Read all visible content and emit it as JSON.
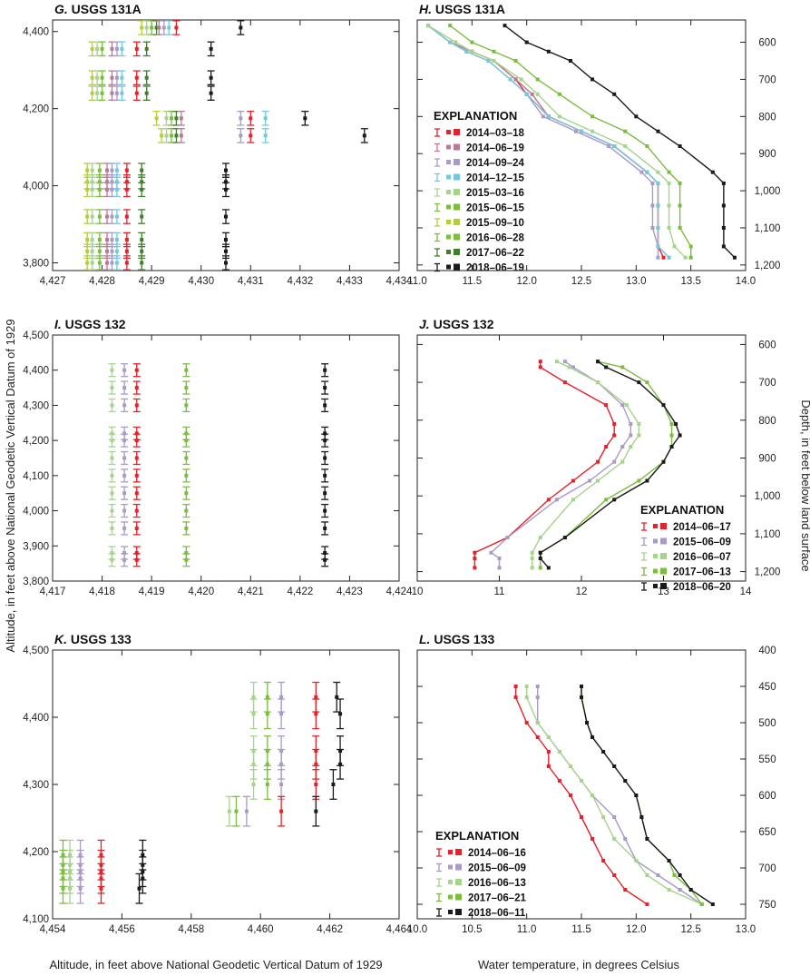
{
  "figure": {
    "left_axis_title": "Altitude, in feet above National Geodetic Vertical Datum of 1929",
    "bottom_left_title": "Altitude, in feet above National Geodetic Vertical Datum of 1929",
    "right_axis_title": "Depth, in feet below land surface",
    "bottom_right_title": "Water temperature, in degrees Celsius"
  },
  "colors": {
    "red": "#e4222b",
    "mauve": "#b97a94",
    "lavender": "#a99ac7",
    "cyan": "#74c8dd",
    "lightgreen": "#a6d48c",
    "green": "#7cbd3f",
    "lime": "#b3cf3a",
    "darkgreen": "#3f7e2c",
    "black": "#1a1a1a"
  },
  "chart_data": [
    {
      "id": "G",
      "type": "scatter",
      "letter": "G.",
      "title": " USGS 131A",
      "xlim": [
        4427,
        4434
      ],
      "ylim": [
        3780,
        4430
      ],
      "xticks": [
        4427,
        4428,
        4429,
        4430,
        4431,
        4432,
        4433,
        4434
      ],
      "xtick_labels": [
        "4,427",
        "4,428",
        "4,429",
        "4,430",
        "4,431",
        "4,432",
        "4,433",
        "4,434"
      ],
      "yticks": [
        3800,
        4000,
        4200,
        4400
      ],
      "ytick_labels": [
        "3,800",
        "4,000",
        "4,200",
        "4,400"
      ],
      "ytick_side": "left",
      "series": [
        {
          "color": "lime",
          "x": [
            4428.8,
            4427.8,
            4427.8,
            4427.8,
            4429.1,
            4429.2,
            4427.7,
            4427.7,
            4427.7,
            4427.7,
            4427.7,
            4427.7,
            4427.7
          ]
        },
        {
          "color": "lightgreen",
          "x": [
            4428.9,
            4427.9,
            4427.9,
            4427.9,
            4429.3,
            4429.3,
            4427.8,
            4427.8,
            4427.8,
            4427.8,
            4427.8,
            4427.8,
            4427.8
          ]
        },
        {
          "color": "green",
          "x": [
            4429.0,
            4428.0,
            4428.0,
            4428.0,
            4429.4,
            4429.4,
            4427.95,
            4427.95,
            4427.95,
            4427.95,
            4427.95,
            4427.95,
            4427.95
          ]
        },
        {
          "color": "darkgreen",
          "x": [
            4429.1,
            4428.9,
            4428.9,
            4428.9,
            4429.5,
            4429.5,
            4428.8,
            4428.8,
            4428.8,
            4428.8,
            4428.8,
            4428.8,
            4428.8
          ]
        },
        {
          "color": "mauve",
          "x": [
            4429.15,
            4428.2,
            4428.2,
            4428.2,
            4429.6,
            4429.6,
            4428.1,
            4428.1,
            4428.1,
            4428.1,
            4428.1,
            4428.1,
            4428.1
          ]
        },
        {
          "color": "lavender",
          "x": [
            4429.25,
            4428.3,
            4428.3,
            4428.3,
            4430.8,
            4430.8,
            4428.2,
            4428.2,
            4428.2,
            4428.2,
            4428.2,
            4428.2,
            4428.2
          ]
        },
        {
          "color": "cyan",
          "x": [
            4429.35,
            4428.4,
            4428.4,
            4428.4,
            4431.3,
            4431.3,
            4428.3,
            4428.3,
            4428.3,
            4428.3,
            4428.3,
            4428.3,
            4428.3
          ]
        },
        {
          "color": "red",
          "x": [
            4429.5,
            4428.7,
            4428.7,
            4428.7,
            4431.0,
            4431.0,
            4428.5,
            4428.5,
            4428.5,
            4428.5,
            4428.5,
            4428.5,
            4428.5
          ]
        },
        {
          "color": "black",
          "x": [
            4430.8,
            4430.2,
            4430.2,
            4430.2,
            4432.1,
            4433.3,
            4430.5,
            4430.5,
            4430.5,
            4430.5,
            4430.5,
            4430.5,
            4430.5
          ]
        }
      ],
      "y": [
        4410,
        4355,
        4280,
        4240,
        4175,
        4130,
        4040,
        4010,
        3990,
        3920,
        3860,
        3830,
        3800
      ],
      "yerr": 18
    },
    {
      "id": "H",
      "type": "line",
      "letter": "H.",
      "title": " USGS 131A",
      "xlim": [
        11.0,
        14.0
      ],
      "ylim": [
        540,
        1215
      ],
      "xticks": [
        11.0,
        11.5,
        12.0,
        12.5,
        13.0,
        13.5,
        14.0
      ],
      "xtick_labels": [
        "11.0",
        "11.5",
        "12.0",
        "12.5",
        "13.0",
        "13.5",
        "14.0"
      ],
      "yticks": [
        600,
        700,
        800,
        900,
        1000,
        1100,
        1200
      ],
      "ytick_labels": [
        "600",
        "700",
        "800",
        "900",
        "1,000",
        "1,100",
        "1,200"
      ],
      "ytick_side": "right",
      "y_inverted": true,
      "legend": {
        "title": "EXPLANATION",
        "placement": "center-left",
        "entries": [
          {
            "label": "2014–03–18",
            "color": "red"
          },
          {
            "label": "2014–06–19",
            "color": "mauve"
          },
          {
            "label": "2014–09–24",
            "color": "lavender"
          },
          {
            "label": "2014–12–15",
            "color": "cyan"
          },
          {
            "label": "2015–03–16",
            "color": "lightgreen"
          },
          {
            "label": "2015–06–15",
            "color": "green"
          },
          {
            "label": "2015–09–10",
            "color": "lime"
          },
          {
            "label": "2016–06–28",
            "color": "green"
          },
          {
            "label": "2017–06–22",
            "color": "darkgreen"
          },
          {
            "label": "2018–06–19",
            "color": "black"
          }
        ]
      },
      "depth": [
        555,
        600,
        625,
        650,
        700,
        740,
        800,
        840,
        880,
        950,
        980,
        1040,
        1100,
        1150,
        1180
      ],
      "series": [
        {
          "color": "red",
          "values": [
            11.1,
            11.3,
            11.5,
            11.7,
            11.9,
            12.0,
            12.2,
            12.5,
            12.8,
            13.1,
            13.2,
            13.2,
            13.2,
            13.2,
            13.25
          ]
        },
        {
          "color": "mauve",
          "values": [
            11.1,
            11.3,
            11.5,
            11.7,
            11.9,
            12.05,
            12.2,
            12.5,
            12.8,
            13.1,
            13.2,
            13.2,
            13.2,
            13.2,
            13.3
          ]
        },
        {
          "color": "lavender",
          "values": [
            11.1,
            11.3,
            11.45,
            11.65,
            11.85,
            12.0,
            12.15,
            12.45,
            12.75,
            13.05,
            13.15,
            13.15,
            13.15,
            13.2,
            13.2
          ]
        },
        {
          "color": "cyan",
          "values": [
            11.1,
            11.3,
            11.45,
            11.65,
            11.85,
            12.0,
            12.2,
            12.5,
            12.8,
            13.1,
            13.2,
            13.2,
            13.2,
            13.2,
            13.3
          ]
        },
        {
          "color": "lightgreen",
          "values": [
            11.1,
            11.35,
            11.5,
            11.7,
            11.95,
            12.1,
            12.3,
            12.6,
            12.9,
            13.2,
            13.3,
            13.3,
            13.3,
            13.35,
            13.45
          ]
        },
        {
          "color": "green",
          "values": [
            11.3,
            11.5,
            11.7,
            11.9,
            12.1,
            12.3,
            12.6,
            12.9,
            13.1,
            13.3,
            13.4,
            13.4,
            13.4,
            13.5,
            13.5
          ]
        },
        {
          "color": "black",
          "values": [
            11.8,
            12.0,
            12.2,
            12.4,
            12.6,
            12.8,
            13.0,
            13.2,
            13.4,
            13.7,
            13.8,
            13.8,
            13.8,
            13.8,
            13.9
          ]
        }
      ]
    },
    {
      "id": "I",
      "type": "scatter",
      "letter": "I.",
      "title": " USGS 132",
      "xlim": [
        4417,
        4424
      ],
      "ylim": [
        3800,
        4500
      ],
      "xticks": [
        4417,
        4418,
        4419,
        4420,
        4421,
        4422,
        4423,
        4424
      ],
      "xtick_labels": [
        "4,417",
        "4,418",
        "4,419",
        "4,420",
        "4,421",
        "4,422",
        "4,423",
        "4,424"
      ],
      "yticks": [
        3800,
        3900,
        4000,
        4100,
        4200,
        4300,
        4400,
        4500
      ],
      "ytick_labels": [
        "3,800",
        "3,900",
        "4,000",
        "4,100",
        "4,200",
        "4,300",
        "4,400",
        "4,500"
      ],
      "ytick_side": "left",
      "series": [
        {
          "color": "lightgreen",
          "x": 4418.2
        },
        {
          "color": "lavender",
          "x": 4418.45
        },
        {
          "color": "red",
          "x": 4418.7
        },
        {
          "color": "green",
          "x": 4419.7
        },
        {
          "color": "black",
          "x": 4422.5
        }
      ],
      "y": [
        4400,
        4350,
        4300,
        4220,
        4200,
        4150,
        4100,
        4050,
        4000,
        3950,
        3880,
        3860
      ],
      "yerr": 18
    },
    {
      "id": "J",
      "type": "line",
      "letter": "J.",
      "title": " USGS 132",
      "xlim": [
        10,
        14
      ],
      "ylim": [
        575,
        1225
      ],
      "xticks": [
        10,
        11,
        12,
        13,
        14
      ],
      "xtick_labels": [
        "10",
        "11",
        "12",
        "13",
        "14"
      ],
      "yticks": [
        600,
        700,
        800,
        900,
        1000,
        1100,
        1200
      ],
      "ytick_labels": [
        "600",
        "700",
        "800",
        "900",
        "1,000",
        "1,100",
        "1,200"
      ],
      "ytick_side": "right",
      "y_inverted": true,
      "legend": {
        "title": "EXPLANATION",
        "placement": "lower-right",
        "entries": [
          {
            "label": "2014–06–17",
            "color": "red"
          },
          {
            "label": "2015–06–09",
            "color": "lavender"
          },
          {
            "label": "2016–06–07",
            "color": "lightgreen"
          },
          {
            "label": "2017–06–13",
            "color": "green"
          },
          {
            "label": "2018–06–20",
            "color": "black"
          }
        ]
      },
      "depth": [
        645,
        660,
        700,
        760,
        810,
        840,
        870,
        910,
        960,
        1010,
        1110,
        1150,
        1165,
        1190
      ],
      "series": [
        {
          "color": "red",
          "values": [
            11.5,
            11.5,
            11.8,
            12.3,
            12.4,
            12.4,
            12.3,
            12.2,
            11.9,
            11.6,
            11.1,
            10.7,
            10.7,
            10.7
          ]
        },
        {
          "color": "lavender",
          "values": [
            11.8,
            11.9,
            12.2,
            12.5,
            12.6,
            12.6,
            12.5,
            12.4,
            12.1,
            11.7,
            11.1,
            10.9,
            11.0,
            11.0
          ]
        },
        {
          "color": "lightgreen",
          "values": [
            11.7,
            11.85,
            12.2,
            12.55,
            12.7,
            12.7,
            12.6,
            12.5,
            12.2,
            11.9,
            11.5,
            11.4,
            11.4,
            11.4
          ]
        },
        {
          "color": "green",
          "values": [
            12.2,
            12.5,
            12.8,
            13.0,
            13.1,
            13.1,
            13.1,
            13.0,
            12.7,
            12.3,
            11.8,
            11.5,
            11.5,
            11.5
          ]
        },
        {
          "color": "black",
          "values": [
            12.2,
            12.3,
            12.7,
            13.0,
            13.15,
            13.2,
            13.1,
            13.0,
            12.8,
            12.4,
            11.8,
            11.5,
            11.5,
            11.6
          ]
        }
      ]
    },
    {
      "id": "K",
      "type": "scatter",
      "letter": "K.",
      "title": " USGS 133",
      "xlim": [
        4454,
        4464
      ],
      "ylim": [
        4100,
        4500
      ],
      "xticks": [
        4454,
        4456,
        4458,
        4460,
        4462,
        4464
      ],
      "xtick_labels": [
        "4,454",
        "4,456",
        "4,458",
        "4,460",
        "4,462",
        "4,464"
      ],
      "yticks": [
        4100,
        4200,
        4300,
        4400,
        4500
      ],
      "ytick_labels": [
        "4,100",
        "4,200",
        "4,300",
        "4,400",
        "4,500"
      ],
      "ytick_side": "left",
      "series": [
        {
          "color": "lightgreen",
          "x": [
            4459.8,
            4459.8,
            4459.8,
            4459.8,
            4459.8,
            4459.1,
            4454.5,
            4454.5,
            4454.5,
            4454.5,
            4454.5
          ]
        },
        {
          "color": "green",
          "x": [
            4460.2,
            4460.2,
            4460.2,
            4460.2,
            4460.2,
            4459.3,
            4454.3,
            4454.3,
            4454.3,
            4454.3,
            4454.3
          ]
        },
        {
          "color": "lavender",
          "x": [
            4460.6,
            4460.6,
            4460.6,
            4460.6,
            4460.6,
            4459.6,
            4454.8,
            4454.8,
            4454.8,
            4454.8,
            4454.8
          ]
        },
        {
          "color": "red",
          "x": [
            4461.6,
            4461.6,
            4461.6,
            4461.6,
            4461.6,
            4460.6,
            4455.4,
            4455.4,
            4455.4,
            4455.4,
            4455.4
          ]
        },
        {
          "color": "black",
          "x": [
            4462.2,
            4462.3,
            4462.3,
            4462.3,
            4462.1,
            4461.6,
            4456.6,
            4456.6,
            4456.6,
            4456.6,
            4456.5
          ]
        }
      ],
      "y": [
        4430,
        4405,
        4350,
        4330,
        4300,
        4260,
        4195,
        4180,
        4170,
        4160,
        4145
      ],
      "yerr": 22
    },
    {
      "id": "L",
      "type": "line",
      "letter": "L.",
      "title": " USGS 133",
      "xlim": [
        10.0,
        13.0
      ],
      "ylim": [
        400,
        770
      ],
      "xticks": [
        10.0,
        10.5,
        11.0,
        11.5,
        12.0,
        12.5,
        13.0
      ],
      "xtick_labels": [
        "10.0",
        "10.5",
        "11.0",
        "11.5",
        "12.0",
        "12.5",
        "13.0"
      ],
      "yticks": [
        400,
        450,
        500,
        550,
        600,
        650,
        700,
        750
      ],
      "ytick_labels": [
        "400",
        "450",
        "500",
        "550",
        "600",
        "650",
        "700",
        "750"
      ],
      "ytick_side": "right",
      "y_inverted": true,
      "legend": {
        "title": "EXPLANATION",
        "placement": "lower-left",
        "entries": [
          {
            "label": "2014–06–16",
            "color": "red"
          },
          {
            "label": "2015–06–09",
            "color": "lavender"
          },
          {
            "label": "2016–06–13",
            "color": "lightgreen"
          },
          {
            "label": "2017–06–21",
            "color": "green"
          },
          {
            "label": "2018–06–11",
            "color": "black"
          }
        ]
      },
      "depth": [
        450,
        465,
        500,
        520,
        540,
        560,
        580,
        600,
        630,
        660,
        690,
        710,
        730,
        750
      ],
      "series": [
        {
          "color": "red",
          "values": [
            10.9,
            10.9,
            11.0,
            11.1,
            11.2,
            11.2,
            11.3,
            11.4,
            11.5,
            11.6,
            11.7,
            11.8,
            11.9,
            12.1
          ]
        },
        {
          "color": "lavender",
          "values": [
            11.1,
            11.1,
            11.1,
            11.2,
            11.3,
            11.4,
            11.5,
            11.6,
            11.8,
            11.9,
            12.0,
            12.2,
            12.4,
            12.6
          ]
        },
        {
          "color": "lightgreen",
          "values": [
            11.0,
            11.0,
            11.1,
            11.2,
            11.3,
            11.4,
            11.5,
            11.6,
            11.7,
            11.8,
            12.0,
            12.1,
            12.3,
            12.6
          ]
        },
        {
          "color": "green",
          "values": [
            11.5,
            11.5,
            11.55,
            11.6,
            11.7,
            11.8,
            11.9,
            12.0,
            12.05,
            12.1,
            12.3,
            12.35,
            12.5,
            12.6
          ]
        },
        {
          "color": "black",
          "values": [
            11.5,
            11.5,
            11.55,
            11.6,
            11.7,
            11.8,
            11.9,
            12.0,
            12.05,
            12.1,
            12.3,
            12.4,
            12.5,
            12.7
          ]
        }
      ]
    }
  ]
}
